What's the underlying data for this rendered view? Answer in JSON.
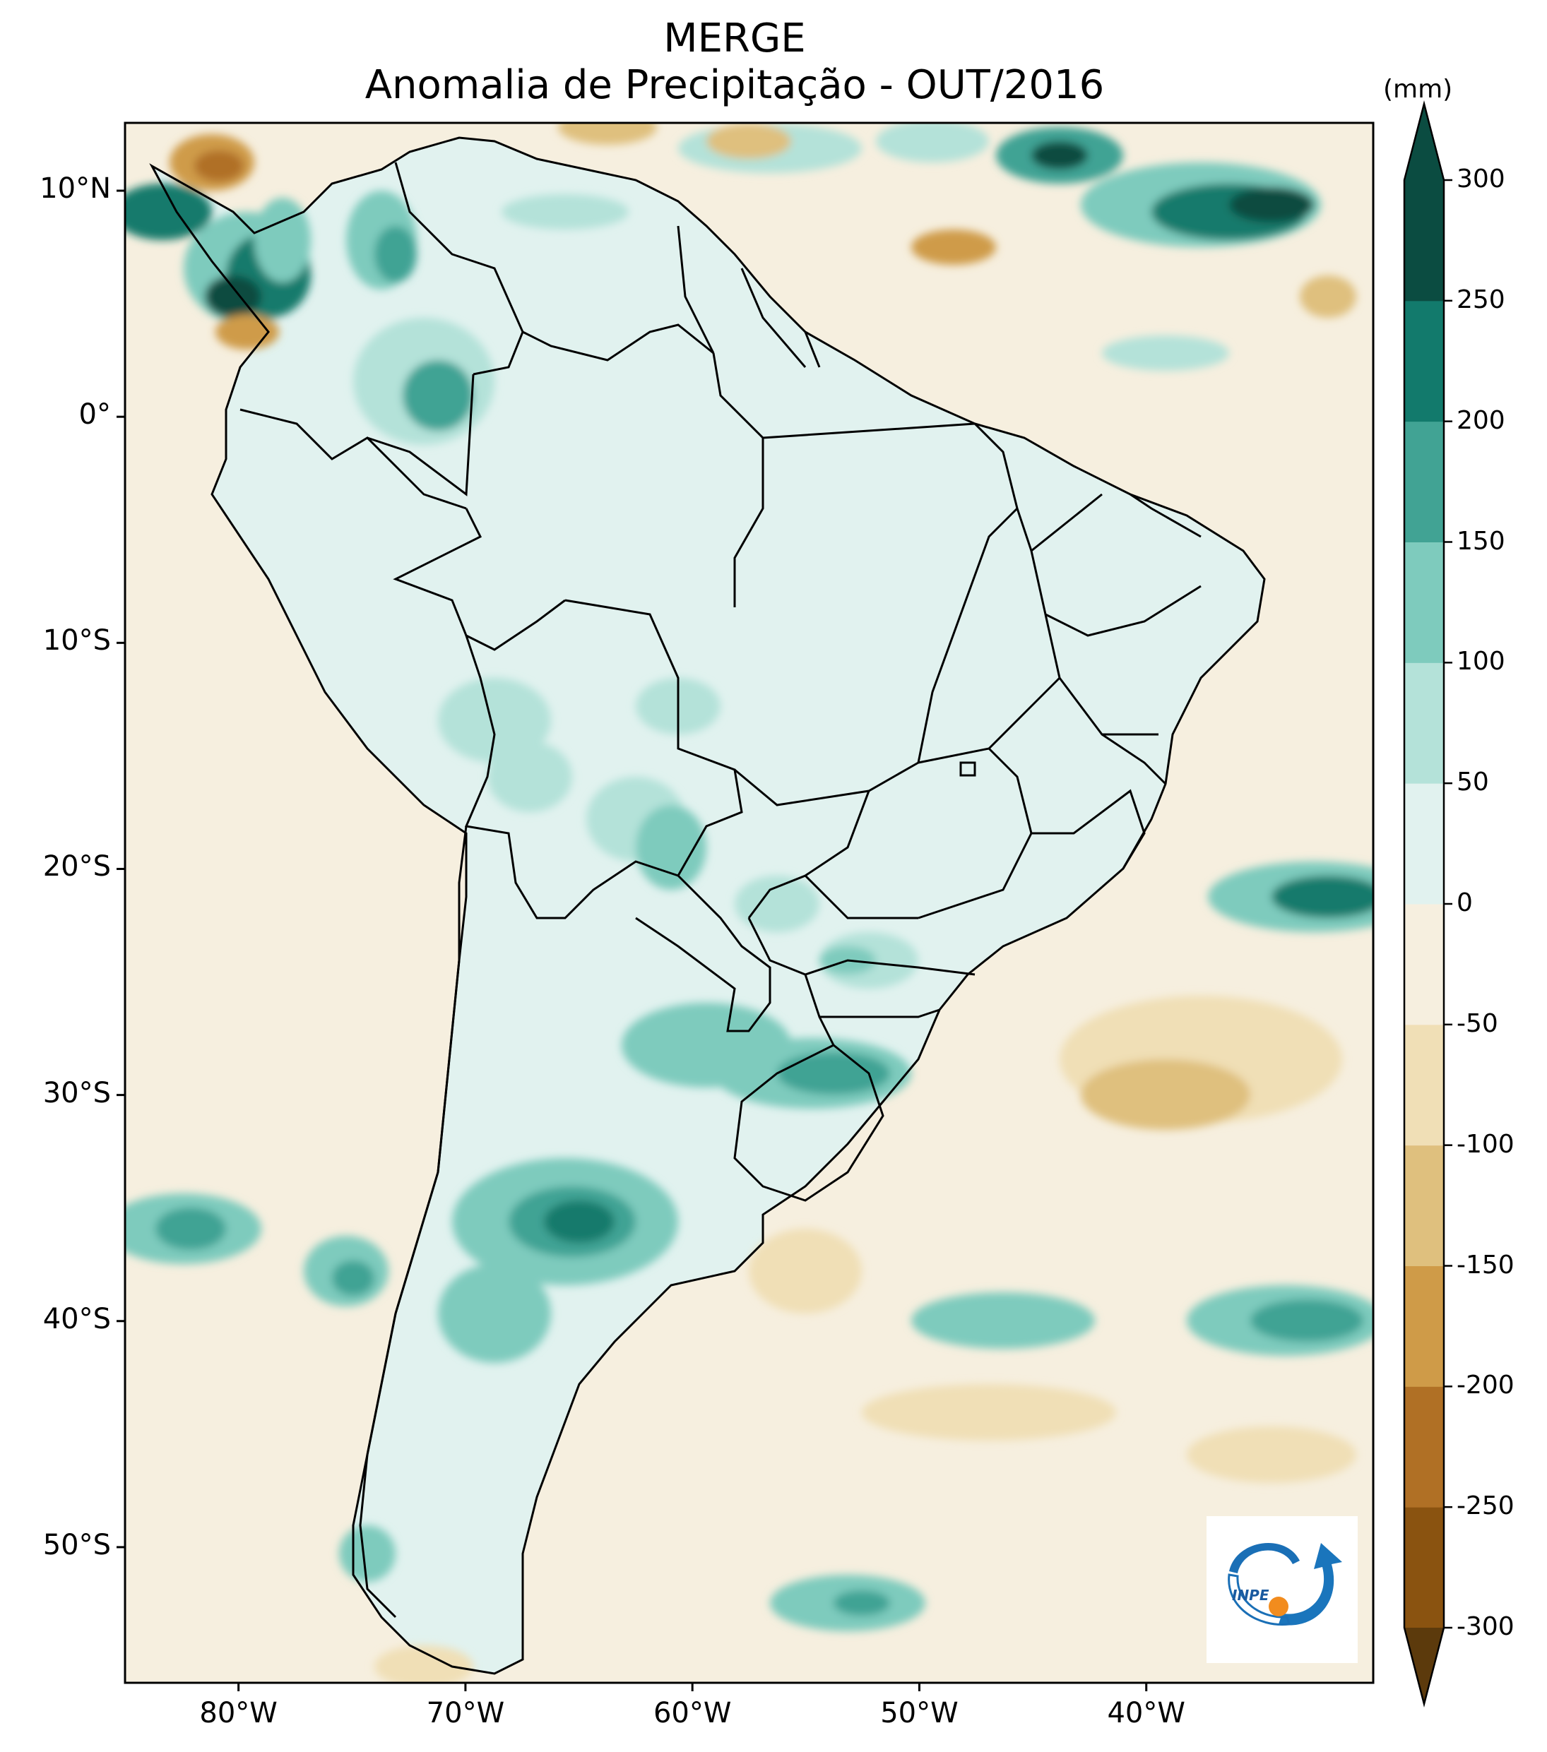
{
  "title": {
    "line1": "MERGE",
    "line2": "Anomalia de Precipitação - OUT/2016"
  },
  "map": {
    "region": "South America",
    "variable": "precipitation anomaly",
    "lon_range": [
      -85,
      -30
    ],
    "lat_range": [
      -56,
      13
    ],
    "lat_ticks": [
      {
        "label": "10°N",
        "value": 10
      },
      {
        "label": "0°",
        "value": 0
      },
      {
        "label": "10°S",
        "value": -10
      },
      {
        "label": "20°S",
        "value": -20
      },
      {
        "label": "30°S",
        "value": -30
      },
      {
        "label": "40°S",
        "value": -40
      },
      {
        "label": "50°S",
        "value": -50
      }
    ],
    "lon_ticks": [
      {
        "label": "80°W",
        "value": -80
      },
      {
        "label": "70°W",
        "value": -70
      },
      {
        "label": "60°W",
        "value": -60
      },
      {
        "label": "50°W",
        "value": -50
      },
      {
        "label": "40°W",
        "value": -40
      }
    ]
  },
  "colorbar": {
    "unit": "(mm)",
    "levels": [
      -300,
      -250,
      -200,
      -150,
      -100,
      -50,
      0,
      50,
      100,
      150,
      200,
      250,
      300
    ],
    "labels": [
      "300",
      "250",
      "200",
      "150",
      "100",
      "50",
      "0",
      "-50",
      "-100",
      "-150",
      "-200",
      "-250",
      "-300"
    ],
    "colors_low_to_high": [
      "#5c3a0c",
      "#8a5310",
      "#b07025",
      "#cf9b48",
      "#dfc07e",
      "#f0dfb6",
      "#f6efdf",
      "#e1f2ef",
      "#b4e2d9",
      "#7ecbbd",
      "#41a394",
      "#127a6c",
      "#0b4c41"
    ],
    "extend_low_color": "#5c3a0c",
    "extend_high_color": "#0b4c41"
  },
  "colors": {
    "ocean_bg": "#f6efdf",
    "land_base": "#e1f2ef",
    "border": "#000000"
  },
  "logo": {
    "text": "INPE"
  }
}
